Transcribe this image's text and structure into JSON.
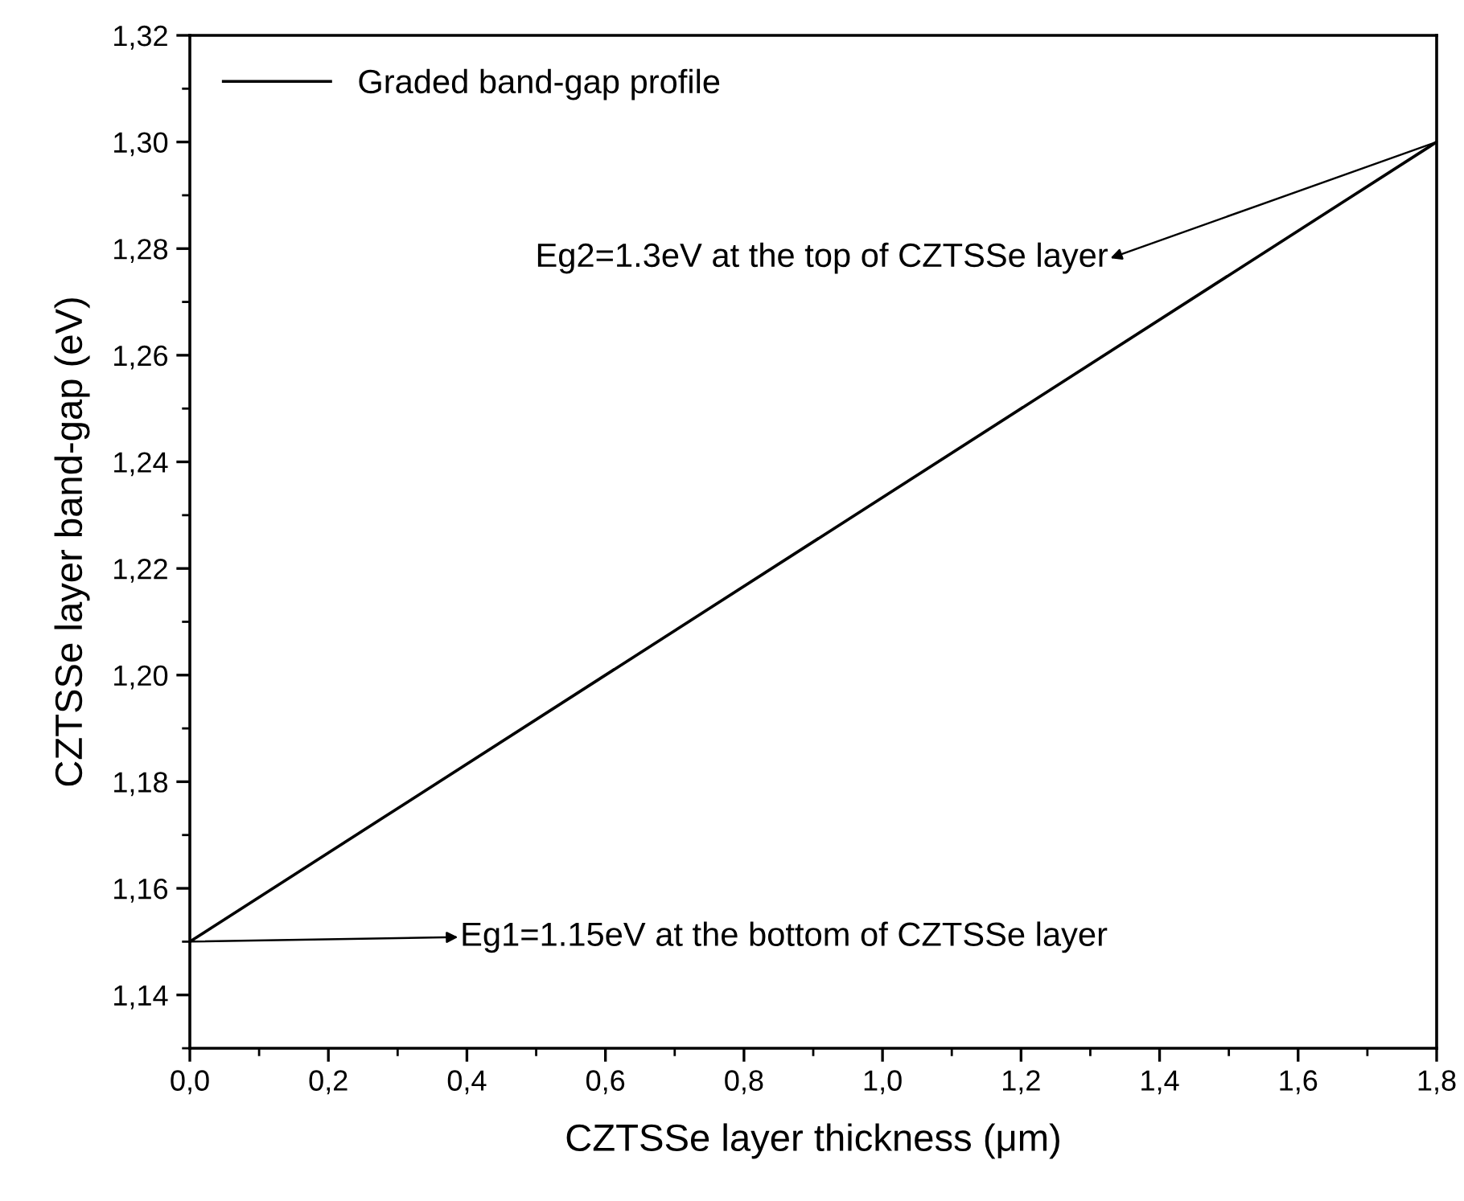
{
  "chart_data": {
    "type": "line",
    "xlabel": "CZTSSe layer thickness (μm)",
    "ylabel": "CZTSSe layer band-gap (eV)",
    "x": [
      0,
      1.8
    ],
    "series": [
      {
        "name": "Graded band-gap profile",
        "color": "#000000",
        "values": [
          1.15,
          1.3
        ]
      }
    ],
    "xlim": [
      0,
      1.8
    ],
    "ylim": [
      1.13,
      1.32
    ],
    "xticks": [
      {
        "value": 0,
        "label": "0,0"
      },
      {
        "value": 0.2,
        "label": "0,2"
      },
      {
        "value": 0.4,
        "label": "0,4"
      },
      {
        "value": 0.6,
        "label": "0,6"
      },
      {
        "value": 0.8,
        "label": "0,8"
      },
      {
        "value": 1.0,
        "label": "1,0"
      },
      {
        "value": 1.2,
        "label": "1,2"
      },
      {
        "value": 1.4,
        "label": "1,4"
      },
      {
        "value": 1.6,
        "label": "1,6"
      },
      {
        "value": 1.8,
        "label": "1,8"
      }
    ],
    "yticks": [
      {
        "value": 1.14,
        "label": "1,14"
      },
      {
        "value": 1.16,
        "label": "1,16"
      },
      {
        "value": 1.18,
        "label": "1,18"
      },
      {
        "value": 1.2,
        "label": "1,20"
      },
      {
        "value": 1.22,
        "label": "1,22"
      },
      {
        "value": 1.24,
        "label": "1,24"
      },
      {
        "value": 1.26,
        "label": "1,26"
      },
      {
        "value": 1.28,
        "label": "1,28"
      },
      {
        "value": 1.3,
        "label": "1,30"
      },
      {
        "value": 1.32,
        "label": "1,32"
      }
    ],
    "annotations": [
      {
        "text": "Eg1=1.15eV at the bottom of CZTSSe layer",
        "x": 0,
        "y": 1.15
      },
      {
        "text": "Eg2=1.3eV at the top of CZTSSe layer",
        "x": 1.8,
        "y": 1.3
      }
    ],
    "legend": "top left",
    "grid": false,
    "line_style": "solid"
  }
}
